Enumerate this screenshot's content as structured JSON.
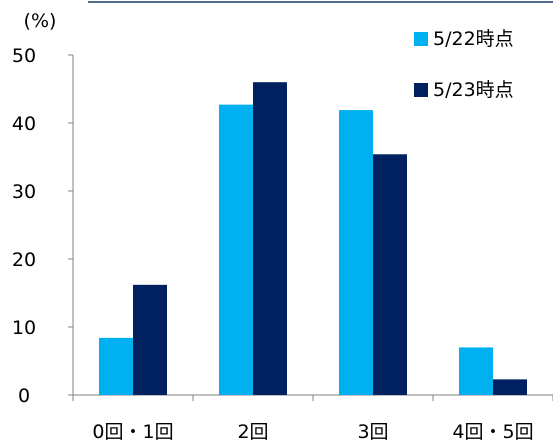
{
  "chart_data": {
    "type": "bar",
    "ylabel": "(%)",
    "ylim": [
      0,
      50
    ],
    "yticks": [
      0,
      10,
      20,
      30,
      40,
      50
    ],
    "categories": [
      "0回・1回",
      "2回",
      "3回",
      "4回・5回"
    ],
    "series": [
      {
        "name": "5/22時点",
        "color": "#00b0f0",
        "values": [
          8.4,
          42.7,
          41.9,
          7.0
        ]
      },
      {
        "name": "5/23時点",
        "color": "#002060",
        "values": [
          16.2,
          46.0,
          35.4,
          2.3
        ]
      }
    ],
    "legend_position": "top-right",
    "grid": false
  }
}
